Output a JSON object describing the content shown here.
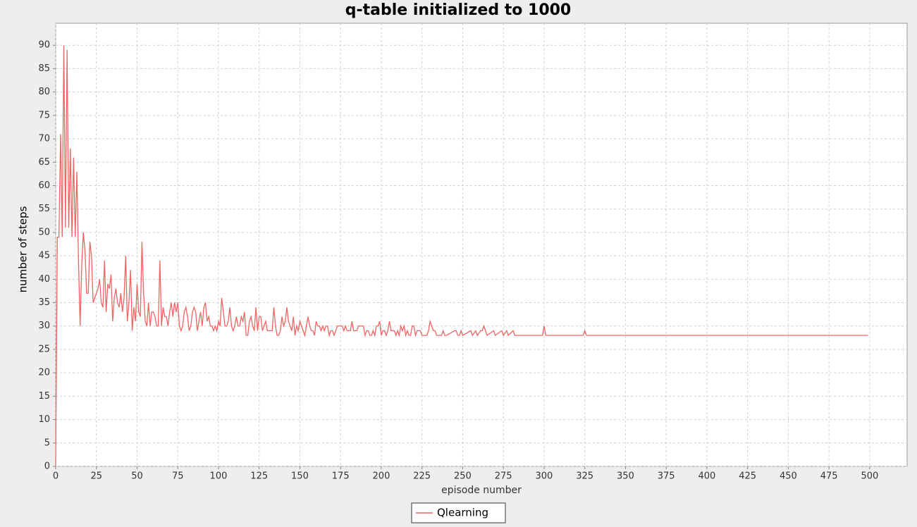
{
  "chart_data": {
    "type": "line",
    "title": "q-table initialized to 1000",
    "x_label": "episode number",
    "y_label": "number of steps",
    "xlim": [
      0,
      523
    ],
    "ylim": [
      0,
      94.7
    ],
    "xticks": [
      0,
      25,
      50,
      75,
      100,
      125,
      150,
      175,
      200,
      225,
      250,
      275,
      300,
      325,
      350,
      375,
      400,
      425,
      450,
      475,
      500
    ],
    "yticks": [
      0,
      5,
      10,
      15,
      20,
      25,
      30,
      35,
      40,
      45,
      50,
      55,
      60,
      65,
      70,
      75,
      80,
      85,
      90
    ],
    "grid": true,
    "legend": "bottom",
    "x": [
      0,
      1,
      2,
      3,
      4,
      5,
      6,
      7,
      8,
      9,
      10,
      11,
      12,
      13,
      14,
      15,
      16,
      17,
      18,
      19,
      20,
      21,
      22,
      23,
      24,
      25,
      26,
      27,
      28,
      29,
      30,
      31,
      32,
      33,
      34,
      35,
      36,
      37,
      38,
      39,
      40,
      41,
      42,
      43,
      44,
      45,
      46,
      47,
      48,
      49,
      50,
      51,
      52,
      53,
      54,
      55,
      56,
      57,
      58,
      59,
      60,
      61,
      62,
      63,
      64,
      65,
      66,
      67,
      68,
      69,
      70,
      71,
      72,
      73,
      74,
      75,
      76,
      77,
      78,
      79,
      80,
      81,
      82,
      83,
      84,
      85,
      86,
      87,
      88,
      89,
      90,
      91,
      92,
      93,
      94,
      95,
      96,
      97,
      98,
      99,
      100,
      101,
      102,
      103,
      104,
      105,
      106,
      107,
      108,
      109,
      110,
      111,
      112,
      113,
      114,
      115,
      116,
      117,
      118,
      119,
      120,
      121,
      122,
      123,
      124,
      125,
      126,
      127,
      128,
      129,
      130,
      131,
      132,
      133,
      134,
      135,
      136,
      137,
      138,
      139,
      140,
      141,
      142,
      143,
      144,
      145,
      146,
      147,
      148,
      149,
      150,
      151,
      152,
      153,
      154,
      155,
      156,
      157,
      158,
      159,
      160,
      161,
      162,
      163,
      164,
      165,
      166,
      167,
      168,
      169,
      170,
      171,
      172,
      173,
      174,
      175,
      176,
      177,
      178,
      179,
      180,
      181,
      182,
      183,
      184,
      185,
      186,
      187,
      188,
      189,
      190,
      191,
      192,
      193,
      194,
      195,
      196,
      197,
      198,
      199,
      200,
      201,
      202,
      203,
      204,
      205,
      206,
      207,
      208,
      209,
      210,
      211,
      212,
      213,
      214,
      215,
      216,
      217,
      218,
      219,
      220,
      221,
      222,
      223,
      224,
      225,
      226,
      227,
      228,
      229,
      230,
      231,
      232,
      233,
      234,
      235,
      236,
      237,
      238,
      239,
      240,
      245,
      246,
      247,
      248,
      249,
      250,
      255,
      256,
      258,
      259,
      261,
      262,
      263,
      264,
      265,
      269,
      270,
      274,
      275,
      277,
      278,
      281,
      282,
      299,
      300,
      301,
      324,
      325,
      326,
      499
    ],
    "series": [
      {
        "name": "Qlearning",
        "color": "#f06464",
        "values": [
          0,
          49,
          49,
          71,
          49,
          90,
          51,
          89,
          51,
          68,
          49,
          66,
          49,
          63,
          44,
          30,
          43,
          50,
          46,
          37,
          37,
          48,
          45,
          35,
          36,
          37,
          38,
          40,
          35,
          34,
          44,
          33,
          39,
          38,
          41,
          31,
          36,
          38,
          35,
          34,
          37,
          33,
          36,
          45,
          31,
          35,
          42,
          29,
          34,
          31,
          39,
          33,
          32,
          48,
          37,
          31,
          30,
          35,
          30,
          33,
          33,
          32,
          30,
          30,
          44,
          30,
          34,
          32,
          32,
          30,
          33,
          35,
          32,
          35,
          33,
          35,
          30,
          29,
          30,
          33,
          34,
          32,
          29,
          30,
          33,
          34,
          33,
          29,
          31,
          33,
          30,
          34,
          35,
          31,
          32,
          30,
          30,
          29,
          30,
          29,
          31,
          30,
          36,
          33,
          30,
          30,
          31,
          34,
          30,
          29,
          30,
          32,
          30,
          30,
          32,
          31,
          33,
          28,
          28,
          31,
          32,
          30,
          29,
          34,
          29,
          32,
          32,
          29,
          30,
          31,
          29,
          29,
          29,
          29,
          34,
          30,
          28,
          28,
          29,
          32,
          30,
          31,
          34,
          31,
          30,
          29,
          32,
          28,
          30,
          29,
          31,
          30,
          29,
          28,
          30,
          32,
          30,
          29,
          29,
          28,
          31,
          30,
          30,
          29,
          30,
          29,
          30,
          30,
          28,
          29,
          29,
          28,
          29,
          30,
          30,
          30,
          30,
          29,
          30,
          29,
          29,
          29,
          31,
          29,
          29,
          29,
          30,
          30,
          30,
          30,
          28,
          29,
          29,
          28,
          28,
          29,
          28,
          30,
          30,
          31,
          28,
          29,
          29,
          28,
          29,
          31,
          29,
          29,
          29,
          28,
          29,
          28,
          30,
          29,
          30,
          28,
          29,
          28,
          28,
          30,
          30,
          28,
          29,
          29,
          29,
          28,
          28,
          28,
          28,
          29,
          31,
          30,
          29,
          29,
          28,
          28,
          28,
          28,
          29,
          28,
          28,
          29,
          29,
          28,
          28,
          29,
          28,
          29,
          28,
          29,
          28,
          29,
          29,
          30,
          29,
          28,
          29,
          28,
          29,
          28,
          29,
          28,
          29,
          28,
          28,
          30,
          28,
          28,
          29,
          28,
          28
        ]
      }
    ]
  }
}
